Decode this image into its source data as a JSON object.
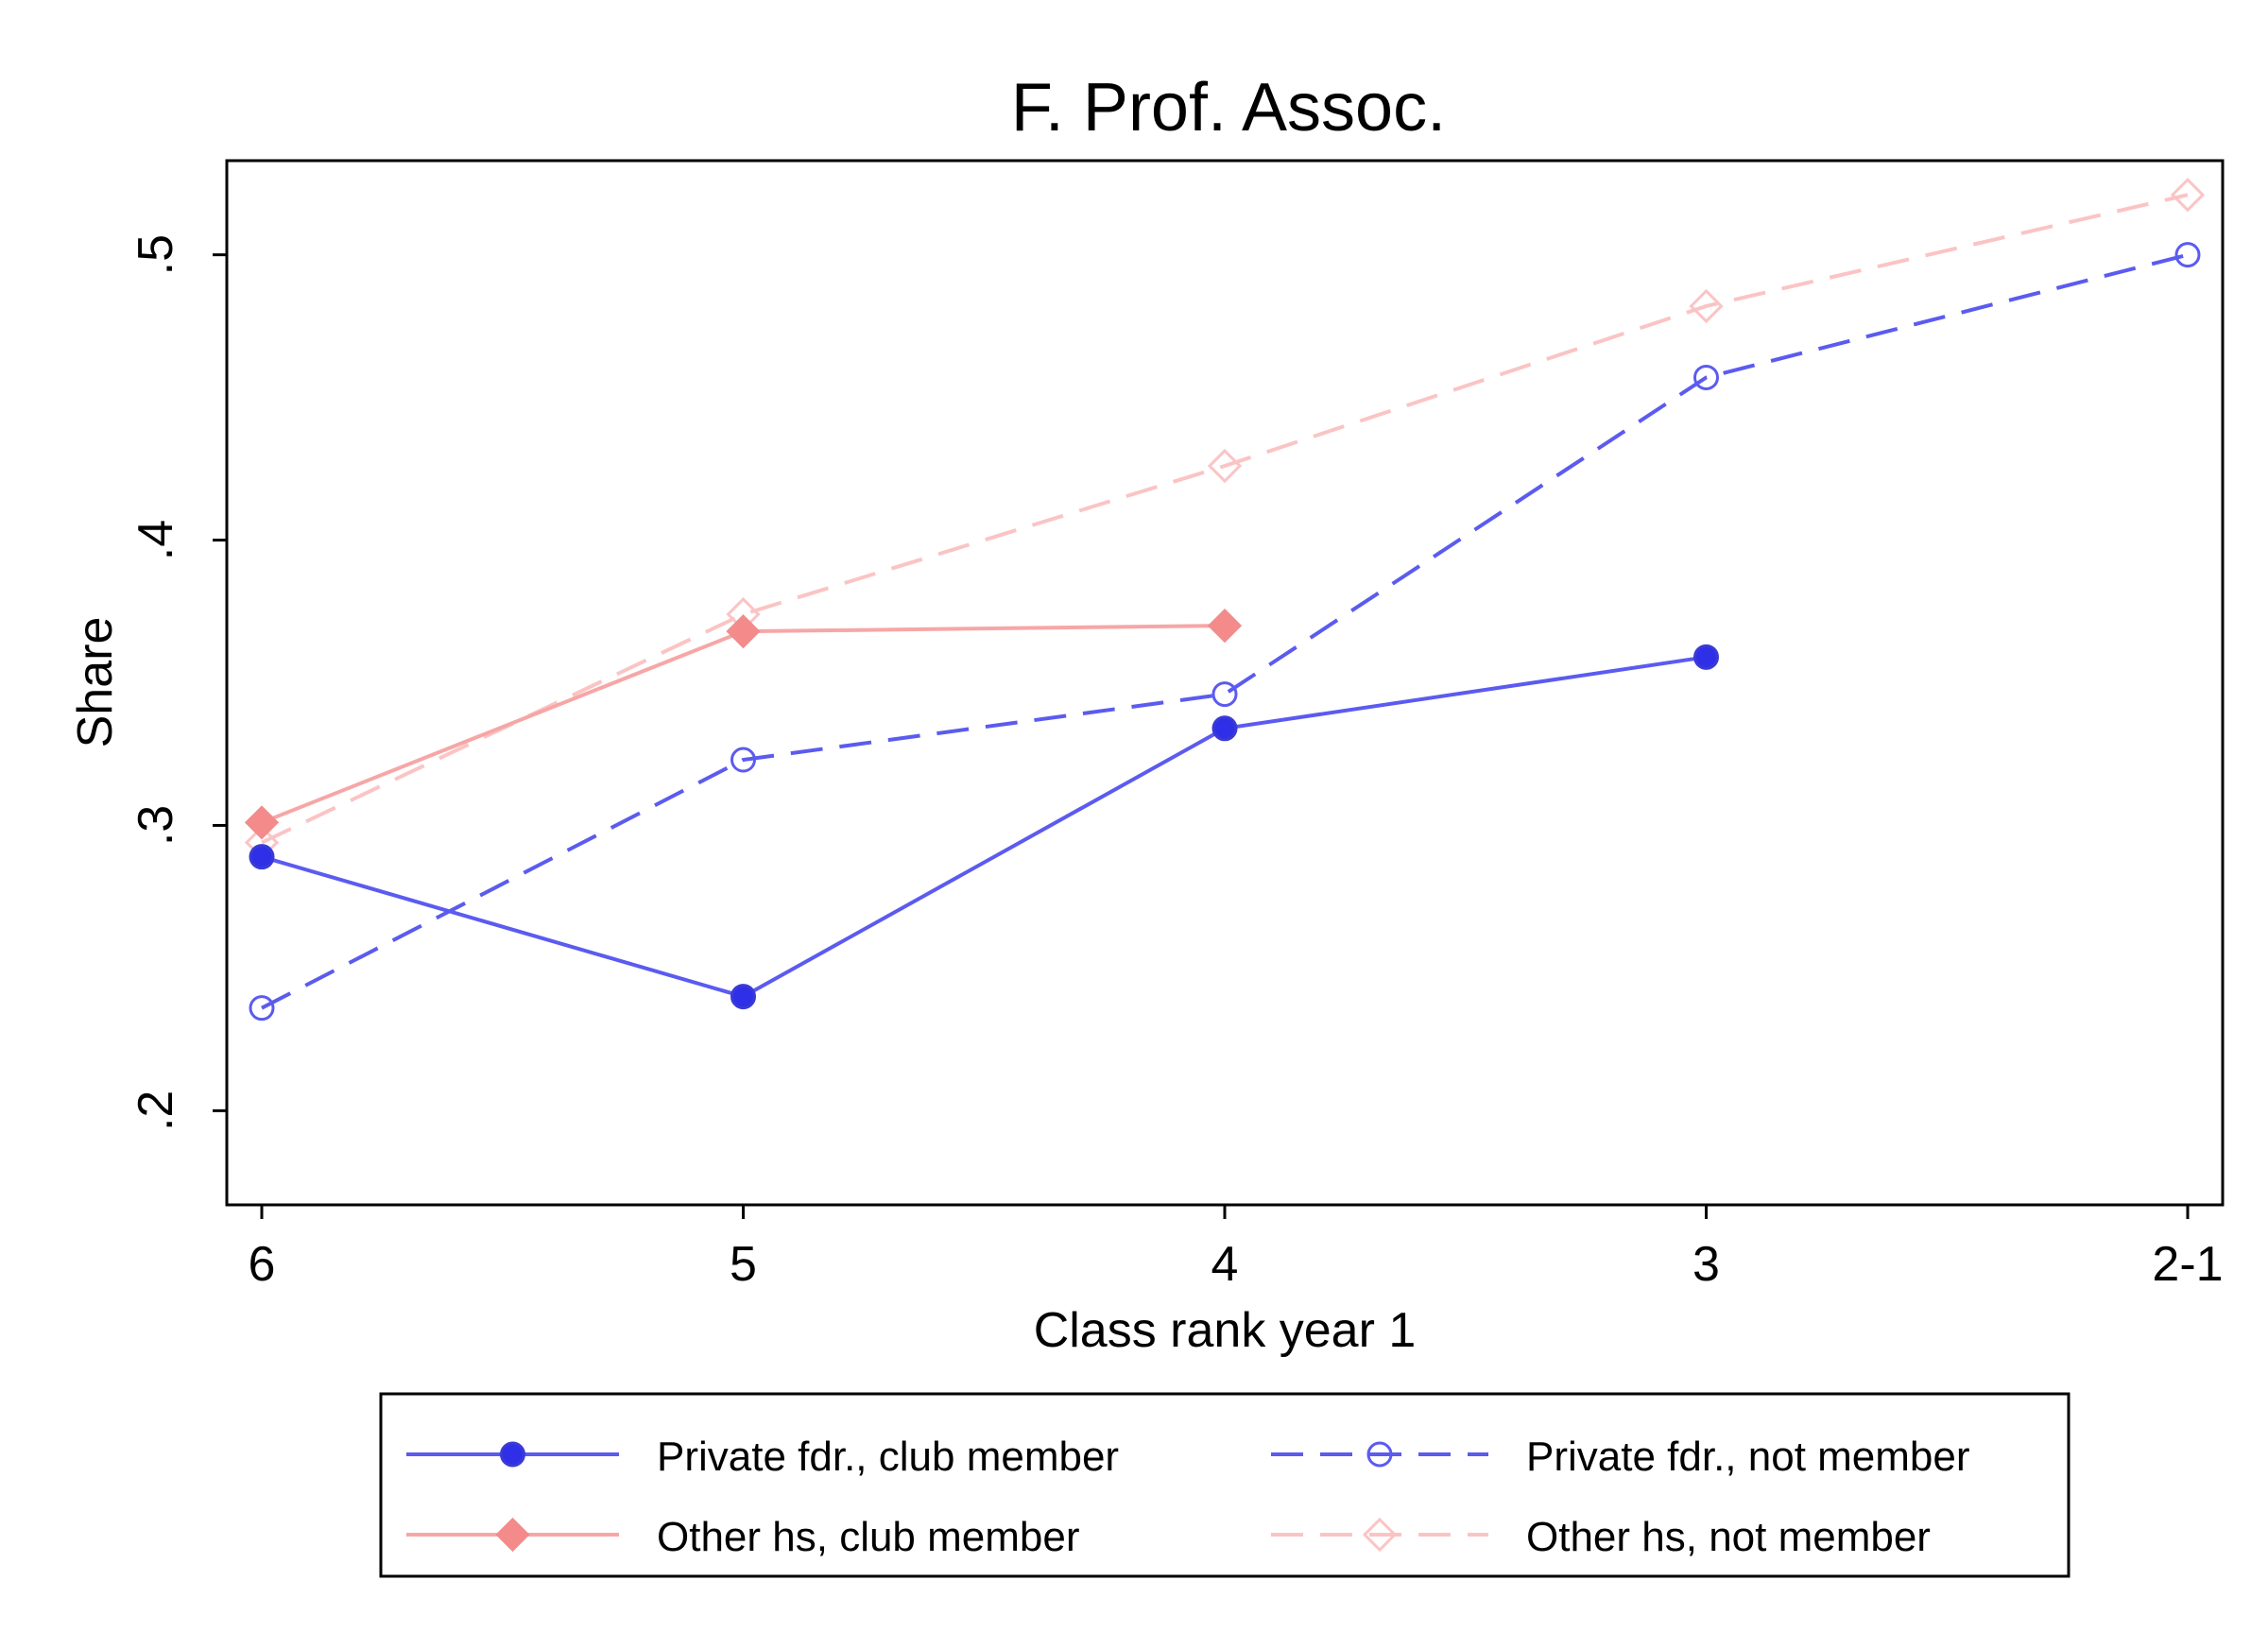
{
  "chart_data": {
    "type": "line",
    "title": "F. Prof. Assoc.",
    "xlabel": "Class rank year 1",
    "ylabel": "Share",
    "categories": [
      "6",
      "5",
      "4",
      "3",
      "2-1"
    ],
    "yticks": [
      {
        "value": 0.2,
        "label": ".2"
      },
      {
        "value": 0.3,
        "label": ".3"
      },
      {
        "value": 0.4,
        "label": ".4"
      },
      {
        "value": 0.5,
        "label": ".5"
      }
    ],
    "ylim": [
      0.167,
      0.533
    ],
    "grid": false,
    "legend_position": "bottom",
    "series": [
      {
        "name": "Private fdr., club member",
        "values": [
          0.289,
          0.24,
          0.334,
          0.359,
          null
        ],
        "color": "#5b5bf0",
        "marker": "circle-filled",
        "dash": "solid"
      },
      {
        "name": "Private fdr., not member",
        "values": [
          0.236,
          0.323,
          0.346,
          0.457,
          0.5
        ],
        "color": "#5b5bf0",
        "marker": "circle-hollow",
        "dash": "dashed"
      },
      {
        "name": "Other hs, club member",
        "values": [
          0.301,
          0.368,
          0.37,
          null,
          null
        ],
        "color": "#f7a6a6",
        "marker": "diamond-filled",
        "dash": "solid"
      },
      {
        "name": "Other hs, not member",
        "values": [
          0.294,
          0.374,
          0.426,
          0.482,
          0.521
        ],
        "color": "#fbc4c4",
        "marker": "diamond-hollow",
        "dash": "dashed"
      }
    ]
  }
}
